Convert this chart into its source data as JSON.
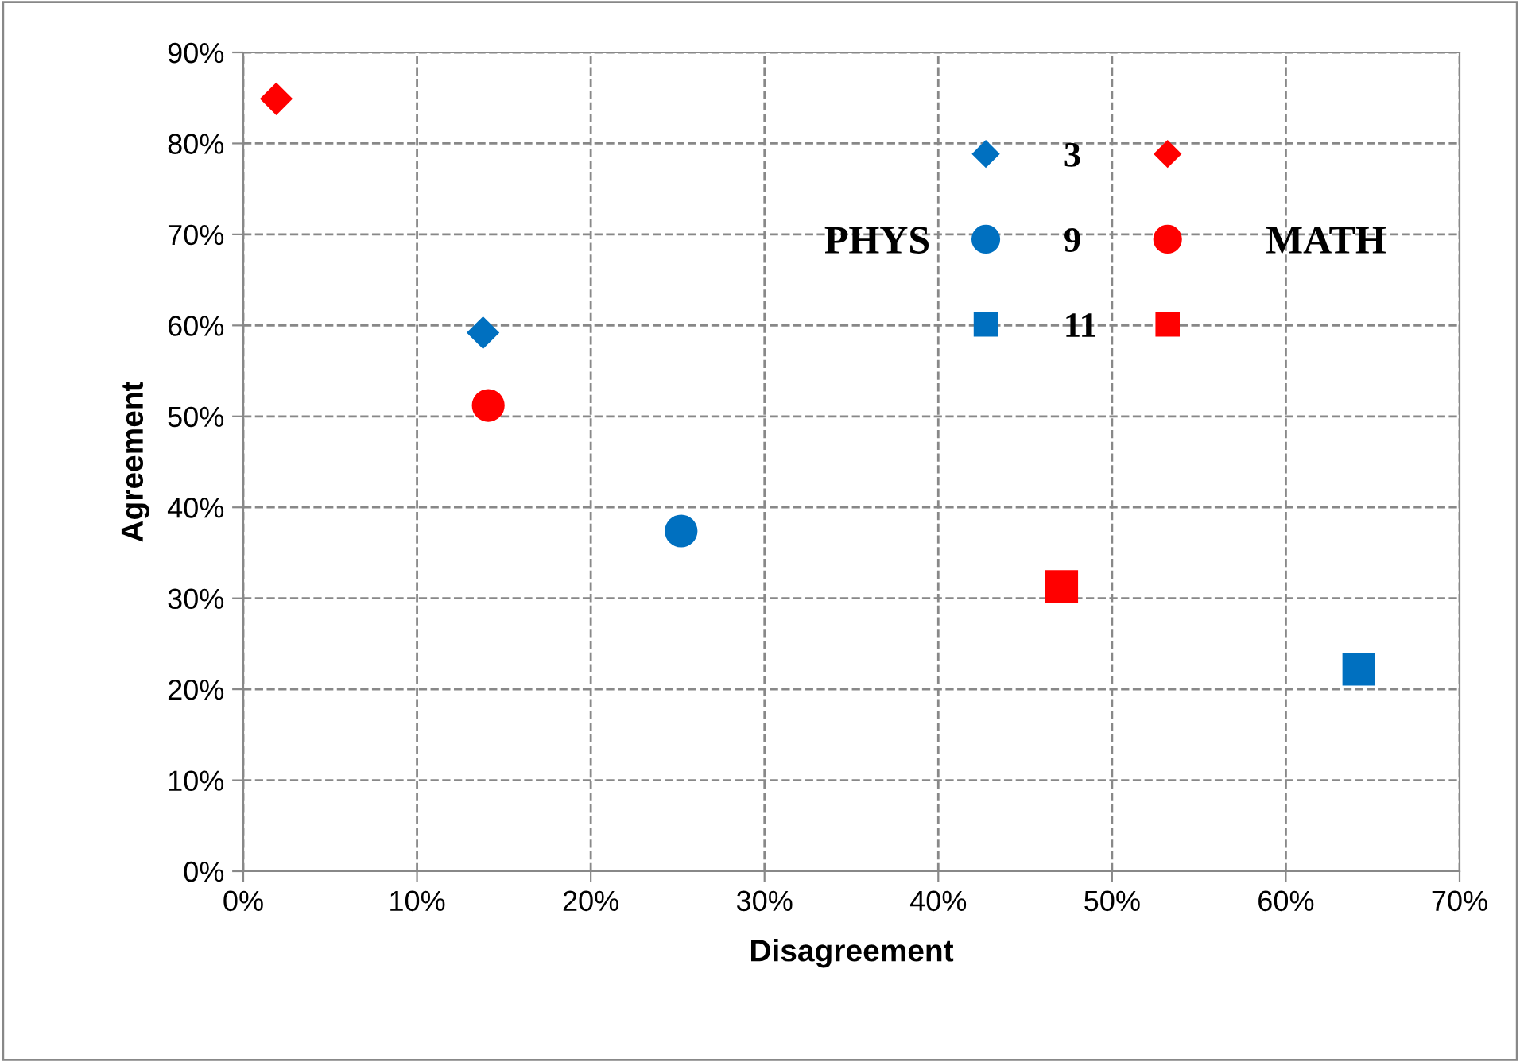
{
  "chart_data": {
    "type": "scatter",
    "xlabel": "Disagreement",
    "ylabel": "Agreement",
    "xlim": [
      0,
      70
    ],
    "ylim": [
      0,
      90
    ],
    "xticks": [
      {
        "value": 0,
        "label": "0%"
      },
      {
        "value": 10,
        "label": "10%"
      },
      {
        "value": 20,
        "label": "20%"
      },
      {
        "value": 30,
        "label": "30%"
      },
      {
        "value": 40,
        "label": "40%"
      },
      {
        "value": 50,
        "label": "50%"
      },
      {
        "value": 60,
        "label": "60%"
      },
      {
        "value": 70,
        "label": "70%"
      }
    ],
    "yticks": [
      {
        "value": 0,
        "label": "0%"
      },
      {
        "value": 10,
        "label": "10%"
      },
      {
        "value": 20,
        "label": "20%"
      },
      {
        "value": 30,
        "label": "30%"
      },
      {
        "value": 40,
        "label": "40%"
      },
      {
        "value": 50,
        "label": "50%"
      },
      {
        "value": 60,
        "label": "60%"
      },
      {
        "value": 70,
        "label": "70%"
      },
      {
        "value": 80,
        "label": "80%"
      },
      {
        "value": 90,
        "label": "90%"
      }
    ],
    "grid": true,
    "legend": "top right",
    "annotations": [
      "PHYS",
      "MATH"
    ],
    "series": [
      {
        "name": "3",
        "color": "#0070c0",
        "marker": "diamond",
        "x": [
          13.8
        ],
        "values": [
          59.2
        ]
      },
      {
        "name": "9",
        "color": "#0070c0",
        "marker": "circle",
        "x": [
          25.2
        ],
        "values": [
          37.4
        ]
      },
      {
        "name": "11",
        "color": "#0070c0",
        "marker": "square",
        "x": [
          64.2
        ],
        "values": [
          22.2
        ]
      },
      {
        "color": "#ff0000",
        "marker": "diamond",
        "x": [
          1.9
        ],
        "values": [
          84.9
        ]
      },
      {
        "color": "#ff0000",
        "marker": "circle",
        "x": [
          14.1
        ],
        "values": [
          51.2
        ]
      },
      {
        "color": "#ff0000",
        "marker": "square",
        "x": [
          47.1
        ],
        "values": [
          31.3
        ]
      }
    ]
  }
}
